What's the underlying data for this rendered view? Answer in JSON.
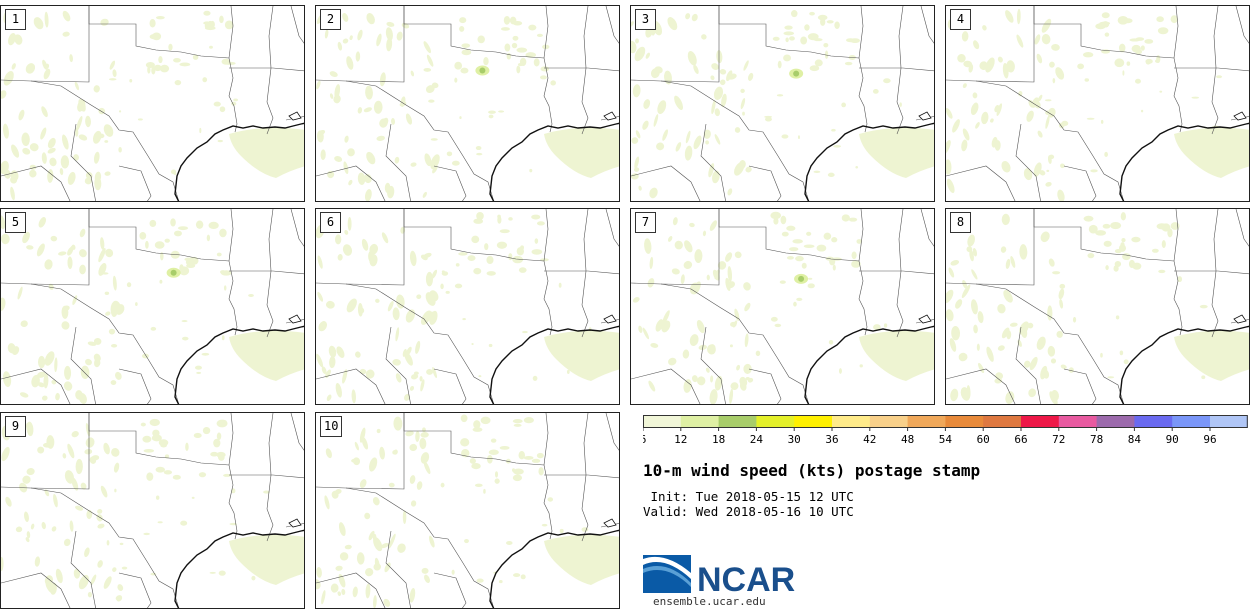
{
  "panels": [
    {
      "label": "1"
    },
    {
      "label": "2"
    },
    {
      "label": "3"
    },
    {
      "label": "4"
    },
    {
      "label": "5"
    },
    {
      "label": "6"
    },
    {
      "label": "7"
    },
    {
      "label": "8"
    },
    {
      "label": "9"
    },
    {
      "label": "10"
    }
  ],
  "colorbar": {
    "colors": [
      "#f1f6d8",
      "#dff0a4",
      "#a8cd6a",
      "#e4f02a",
      "#fff000",
      "#ffeb8a",
      "#f8d08a",
      "#f0a85a",
      "#e88a3a",
      "#de7840",
      "#ee1848",
      "#e85aa0",
      "#9c6aac",
      "#6a6af0",
      "#7a96f8",
      "#b0c6f6"
    ],
    "ticks": [
      "6",
      "12",
      "18",
      "24",
      "30",
      "36",
      "42",
      "48",
      "54",
      "60",
      "66",
      "72",
      "78",
      "84",
      "90",
      "96"
    ]
  },
  "title": "10-m wind speed (kts) postage stamp",
  "init": " Init: Tue 2018-05-15 12 UTC",
  "valid": "Valid: Wed 2018-05-16 10 UTC",
  "logo_text": "NCAR",
  "site": "ensemble.ucar.edu",
  "field_colors": {
    "light": "#eef4d2",
    "mid": "#dff0a4",
    "strong": "#a8cd6a"
  }
}
